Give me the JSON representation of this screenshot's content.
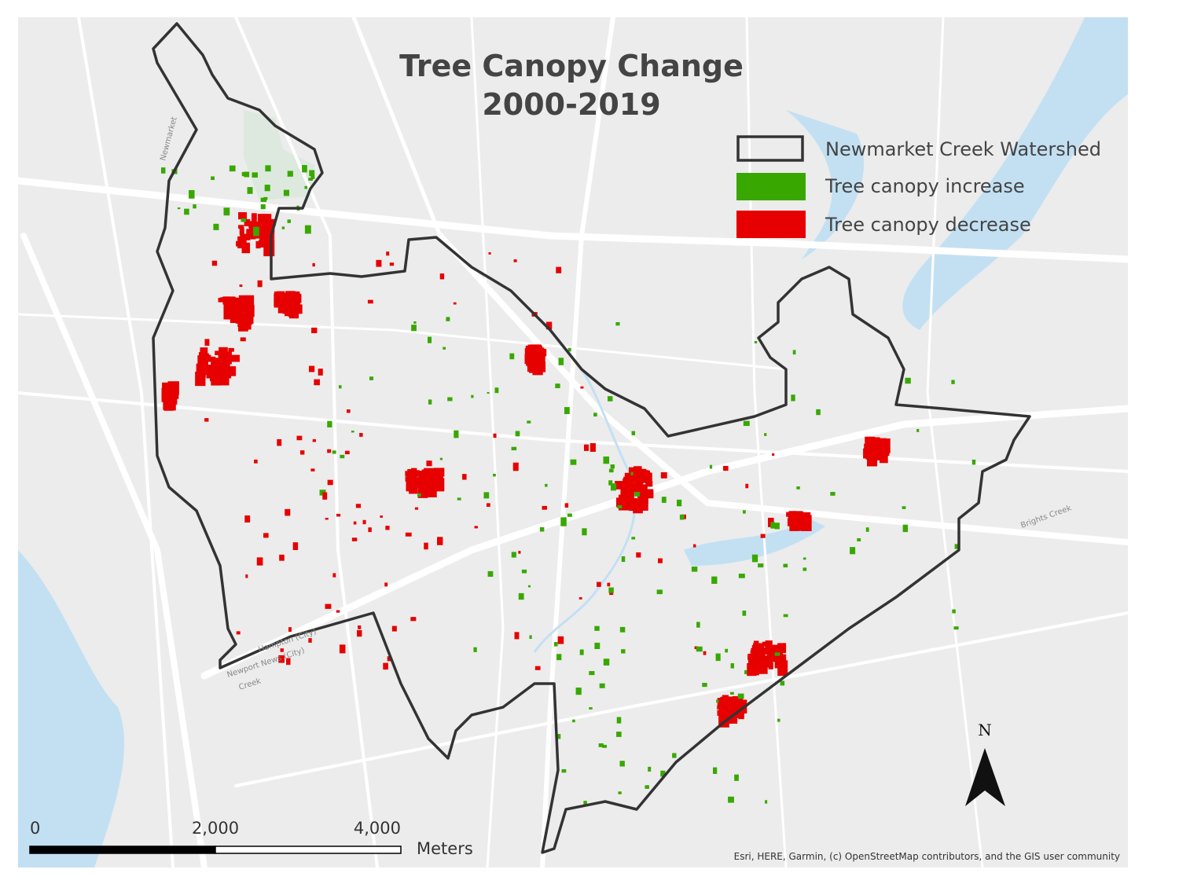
{
  "title": {
    "line1": "Tree Canopy Change",
    "line2": "2000-2019"
  },
  "legend": {
    "items": [
      {
        "label": "Newmarket Creek Watershed"
      },
      {
        "label": "Tree canopy increase"
      },
      {
        "label": "Tree canopy decrease"
      }
    ]
  },
  "scale_bar": {
    "ticks": [
      {
        "value": 0,
        "label": "0"
      },
      {
        "value": 2000,
        "label": "2,000"
      },
      {
        "value": 4000,
        "label": "4,000"
      }
    ],
    "unit": "Meters"
  },
  "north_arrow": {
    "label": "N"
  },
  "map_labels": {
    "newmarket": "Newmarket",
    "hampton": "Hampton (City)",
    "newport_news": "Newport News (City)",
    "creek": "Creek",
    "brights_creek": "Brights Creek"
  },
  "attribution": "Esri, HERE, Garmin, (c) OpenStreetMap contributors, and the GIS user community"
}
